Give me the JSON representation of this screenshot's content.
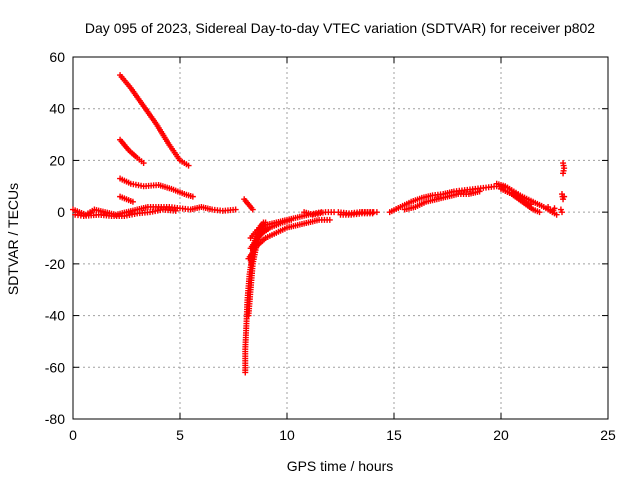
{
  "chart_data": {
    "type": "scatter",
    "title": "Day 095 of 2023, Sidereal Day-to-day VTEC variation (SDTVAR) for receiver p802",
    "xlabel": "GPS time / hours",
    "ylabel": "SDTVAR / TECUs",
    "xlim": [
      0,
      25
    ],
    "ylim": [
      -80,
      60
    ],
    "xticks": [
      0,
      5,
      10,
      15,
      20,
      25
    ],
    "yticks": [
      -80,
      -60,
      -40,
      -20,
      0,
      20,
      40,
      60
    ],
    "xtick_labels": [
      "0",
      "5",
      "10",
      "15",
      "20",
      "25"
    ],
    "ytick_labels": [
      "-80",
      "-60",
      "-40",
      "-20",
      "0",
      "20",
      "40",
      "60"
    ],
    "grid": true,
    "marker": "+",
    "color": "#ff0000",
    "series": [
      {
        "name": "arc-high-a",
        "points": [
          [
            2.2,
            53
          ],
          [
            2.7,
            48
          ],
          [
            3.3,
            41
          ],
          [
            3.9,
            34
          ],
          [
            4.5,
            26
          ],
          [
            5.0,
            20
          ],
          [
            5.4,
            18
          ]
        ]
      },
      {
        "name": "arc-high-b",
        "points": [
          [
            2.2,
            28
          ],
          [
            2.6,
            24
          ],
          [
            3.0,
            21
          ],
          [
            3.3,
            19
          ]
        ]
      },
      {
        "name": "arc-mid",
        "points": [
          [
            2.2,
            13
          ],
          [
            2.7,
            11
          ],
          [
            3.3,
            10
          ],
          [
            4.0,
            10.5
          ],
          [
            4.6,
            9
          ],
          [
            5.2,
            7
          ],
          [
            5.6,
            6
          ]
        ]
      },
      {
        "name": "arc-low-a",
        "points": [
          [
            2.2,
            6
          ],
          [
            2.5,
            5
          ],
          [
            2.8,
            4
          ]
        ]
      },
      {
        "name": "baseline-early",
        "points": [
          [
            0.0,
            1
          ],
          [
            0.3,
            0
          ],
          [
            0.6,
            -1
          ],
          [
            1.0,
            1
          ],
          [
            1.5,
            0
          ],
          [
            2.0,
            -1
          ],
          [
            2.5,
            0
          ],
          [
            3.0,
            1
          ],
          [
            3.5,
            2
          ],
          [
            4.0,
            2
          ],
          [
            4.5,
            2
          ],
          [
            5.0,
            1.5
          ],
          [
            5.5,
            1
          ],
          [
            6.0,
            2
          ],
          [
            6.5,
            1
          ],
          [
            7.0,
            0.5
          ],
          [
            7.6,
            1
          ]
        ]
      },
      {
        "name": "baseline-early-2",
        "points": [
          [
            0.1,
            -1
          ],
          [
            0.5,
            -1.5
          ],
          [
            1.2,
            -1
          ],
          [
            1.8,
            -1.5
          ],
          [
            2.4,
            -1.5
          ],
          [
            3.0,
            -0.5
          ],
          [
            3.6,
            0
          ],
          [
            4.2,
            1
          ],
          [
            4.8,
            0.5
          ]
        ]
      },
      {
        "name": "segment-8h",
        "points": [
          [
            8.0,
            5
          ],
          [
            8.2,
            3
          ],
          [
            8.4,
            1
          ]
        ]
      },
      {
        "name": "dip-a",
        "points": [
          [
            8.9,
            -5
          ],
          [
            8.6,
            -10
          ],
          [
            8.4,
            -16
          ],
          [
            8.25,
            -24
          ],
          [
            8.15,
            -34
          ],
          [
            8.1,
            -44
          ],
          [
            8.05,
            -53
          ],
          [
            8.05,
            -62
          ]
        ]
      },
      {
        "name": "recovery-a",
        "points": [
          [
            8.3,
            -10
          ],
          [
            8.6,
            -7
          ],
          [
            9.0,
            -5
          ],
          [
            9.5,
            -4
          ],
          [
            10.0,
            -3
          ],
          [
            10.5,
            -2
          ],
          [
            11.0,
            -1
          ],
          [
            11.6,
            0
          ]
        ]
      },
      {
        "name": "recovery-b",
        "points": [
          [
            8.2,
            -18
          ],
          [
            8.6,
            -13
          ],
          [
            9.0,
            -10
          ],
          [
            9.5,
            -8
          ],
          [
            10.0,
            -6
          ],
          [
            10.5,
            -5
          ],
          [
            11.0,
            -4
          ],
          [
            11.5,
            -3
          ],
          [
            12.0,
            -3
          ]
        ]
      },
      {
        "name": "recovery-c",
        "points": [
          [
            8.3,
            -14
          ],
          [
            8.7,
            -9
          ],
          [
            9.2,
            -6
          ],
          [
            9.8,
            -4
          ],
          [
            10.2,
            -3
          ]
        ]
      },
      {
        "name": "dip-b",
        "points": [
          [
            9.0,
            -4
          ],
          [
            8.8,
            -8
          ],
          [
            8.6,
            -12
          ],
          [
            8.4,
            -20
          ],
          [
            8.3,
            -30
          ],
          [
            8.2,
            -40
          ]
        ]
      },
      {
        "name": "dip-c",
        "points": [
          [
            8.9,
            -4
          ],
          [
            8.7,
            -6
          ],
          [
            8.5,
            -11
          ],
          [
            8.35,
            -20
          ]
        ]
      },
      {
        "name": "segment-9h",
        "points": [
          [
            8.6,
            -10
          ],
          [
            8.8,
            -7
          ]
        ]
      },
      {
        "name": "segment-10h",
        "points": [
          [
            10.8,
            0
          ],
          [
            11.2,
            -1
          ],
          [
            11.8,
            0
          ],
          [
            12.2,
            0
          ]
        ]
      },
      {
        "name": "segment-12h",
        "points": [
          [
            12.4,
            0
          ],
          [
            12.9,
            -0.5
          ],
          [
            13.4,
            0
          ],
          [
            13.9,
            0
          ],
          [
            14.2,
            0
          ]
        ]
      },
      {
        "name": "segment-12h-b",
        "points": [
          [
            12.5,
            -1
          ],
          [
            13.0,
            -1
          ],
          [
            13.5,
            -0.5
          ],
          [
            14.0,
            -0.5
          ]
        ]
      },
      {
        "name": "segment-13h",
        "points": [
          [
            13.5,
            0
          ],
          [
            14.0,
            0
          ]
        ]
      },
      {
        "name": "rise-late",
        "points": [
          [
            14.8,
            0
          ],
          [
            15.3,
            2
          ],
          [
            15.8,
            4
          ],
          [
            16.3,
            5.5
          ],
          [
            16.8,
            6.5
          ],
          [
            17.3,
            7
          ],
          [
            17.8,
            8
          ],
          [
            18.3,
            8.5
          ],
          [
            18.8,
            9
          ],
          [
            19.3,
            9.5
          ],
          [
            19.8,
            10
          ],
          [
            20.3,
            9.5
          ]
        ]
      },
      {
        "name": "rise-late-b",
        "points": [
          [
            15.5,
            1
          ],
          [
            16.0,
            2
          ],
          [
            16.5,
            4
          ],
          [
            17.0,
            5
          ],
          [
            17.5,
            6
          ],
          [
            18.0,
            7
          ],
          [
            18.5,
            7
          ],
          [
            19.0,
            8
          ]
        ]
      },
      {
        "name": "decay-late",
        "points": [
          [
            19.8,
            11
          ],
          [
            20.2,
            10
          ],
          [
            20.6,
            8
          ],
          [
            21.0,
            6
          ],
          [
            21.5,
            4
          ],
          [
            22.0,
            2
          ],
          [
            22.4,
            0
          ],
          [
            22.6,
            -1
          ]
        ]
      },
      {
        "name": "decay-late-b",
        "points": [
          [
            20.0,
            9
          ],
          [
            20.5,
            7
          ],
          [
            21.0,
            4
          ],
          [
            21.5,
            1
          ],
          [
            21.8,
            0
          ]
        ]
      },
      {
        "name": "decay-late-c",
        "points": [
          [
            20.5,
            7.5
          ],
          [
            21.0,
            5
          ],
          [
            21.4,
            3
          ]
        ]
      },
      {
        "name": "late-cluster",
        "points": [
          [
            22.2,
            2
          ],
          [
            22.3,
            1
          ],
          [
            22.4,
            0
          ],
          [
            22.5,
            1.5
          ]
        ]
      },
      {
        "name": "late-segment-a",
        "points": [
          [
            22.9,
            19
          ],
          [
            22.95,
            17
          ],
          [
            22.9,
            15
          ]
        ]
      },
      {
        "name": "late-segment-b",
        "points": [
          [
            22.85,
            7
          ],
          [
            22.9,
            5
          ],
          [
            22.95,
            6
          ]
        ]
      },
      {
        "name": "late-segment-c",
        "points": [
          [
            22.8,
            1
          ],
          [
            22.85,
            0
          ]
        ]
      }
    ]
  }
}
